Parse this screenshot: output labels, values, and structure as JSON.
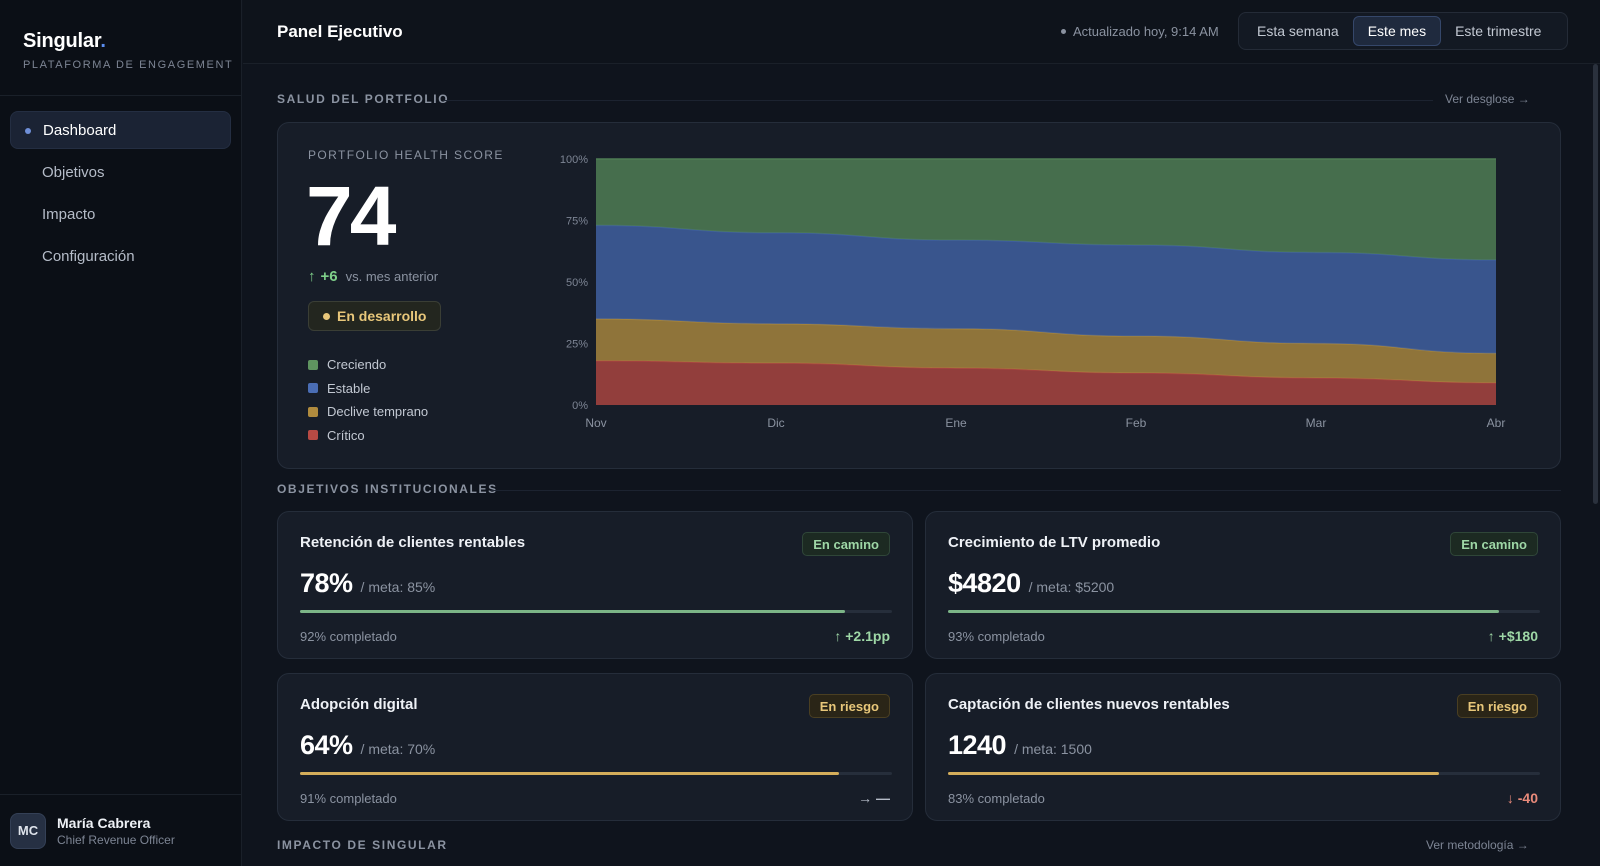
{
  "brand": {
    "name": "Singular",
    "dot": ".",
    "subtitle": "PLATAFORMA DE ENGAGEMENT"
  },
  "sidebar": {
    "items": [
      {
        "label": "Dashboard",
        "active": true
      },
      {
        "label": "Objetivos"
      },
      {
        "label": "Impacto"
      },
      {
        "label": "Configuración"
      }
    ]
  },
  "user": {
    "initials": "MC",
    "name": "María Cabrera",
    "role": "Chief Revenue Officer"
  },
  "header": {
    "title": "Panel Ejecutivo",
    "updated": "Actualizado hoy, 9:14 AM",
    "periods": [
      "Esta semana",
      "Este mes",
      "Este trimestre"
    ],
    "active_period": "Este mes"
  },
  "portfolio": {
    "section_label": "SALUD DEL PORTFOLIO",
    "link": "Ver desglose →",
    "score_label": "PORTFOLIO HEALTH SCORE",
    "score": "74",
    "delta_arrow": "↑",
    "delta": "+6",
    "delta_ref": "vs. mes anterior",
    "status": "En desarrollo",
    "legend": [
      {
        "label": "Creciendo",
        "color": "#5f9460"
      },
      {
        "label": "Estable",
        "color": "#4a6db4"
      },
      {
        "label": "Declive temprano",
        "color": "#b08b3e"
      },
      {
        "label": "Crítico",
        "color": "#b84a44"
      }
    ]
  },
  "chart_data": {
    "type": "area",
    "stacked": true,
    "categories": [
      "Nov",
      "Dic",
      "Ene",
      "Feb",
      "Mar",
      "Abr"
    ],
    "y_ticks": [
      "100%",
      "75%",
      "50%",
      "25%",
      "0%"
    ],
    "ylim": [
      0,
      100
    ],
    "series": [
      {
        "name": "Crítico",
        "color": "#a84440",
        "values": [
          18,
          17,
          15,
          13,
          11,
          9
        ]
      },
      {
        "name": "Declive temprano",
        "color": "#a5843d",
        "values": [
          17,
          16,
          16,
          15,
          14,
          12
        ]
      },
      {
        "name": "Estable",
        "color": "#3f5f9f",
        "values": [
          38,
          37,
          36,
          37,
          37,
          38
        ]
      },
      {
        "name": "Creciendo",
        "color": "#4f7d54",
        "values": [
          27,
          30,
          33,
          35,
          38,
          41
        ]
      }
    ]
  },
  "objectives": {
    "section_label": "OBJETIVOS INSTITUCIONALES",
    "cards": [
      {
        "title": "Retención de clientes rentables",
        "badge": "En camino",
        "status": "ok",
        "value": "78%",
        "meta": "/ meta: 85%",
        "progress": 0.92,
        "progress_label": "92% completado",
        "trend": "↑ +2.1pp",
        "trend_dir": "up"
      },
      {
        "title": "Crecimiento de LTV promedio",
        "badge": "En camino",
        "status": "ok",
        "value": "$4820",
        "meta": "/ meta: $5200",
        "progress": 0.93,
        "progress_label": "93% completado",
        "trend": "↑ +$180",
        "trend_dir": "up"
      },
      {
        "title": "Adopción digital",
        "badge": "En riesgo",
        "status": "risk",
        "value": "64%",
        "meta": "/ meta: 70%",
        "progress": 0.91,
        "progress_label": "91% completado",
        "trend": "→ —",
        "trend_dir": "flat"
      },
      {
        "title": "Captación de clientes nuevos rentables",
        "badge": "En riesgo",
        "status": "risk",
        "value": "1240",
        "meta": "/ meta: 1500",
        "progress": 0.83,
        "progress_label": "83% completado",
        "trend": "↓ -40",
        "trend_dir": "down"
      }
    ]
  },
  "impact": {
    "section_label": "IMPACTO DE SINGULAR",
    "link": "Ver metodología →"
  }
}
